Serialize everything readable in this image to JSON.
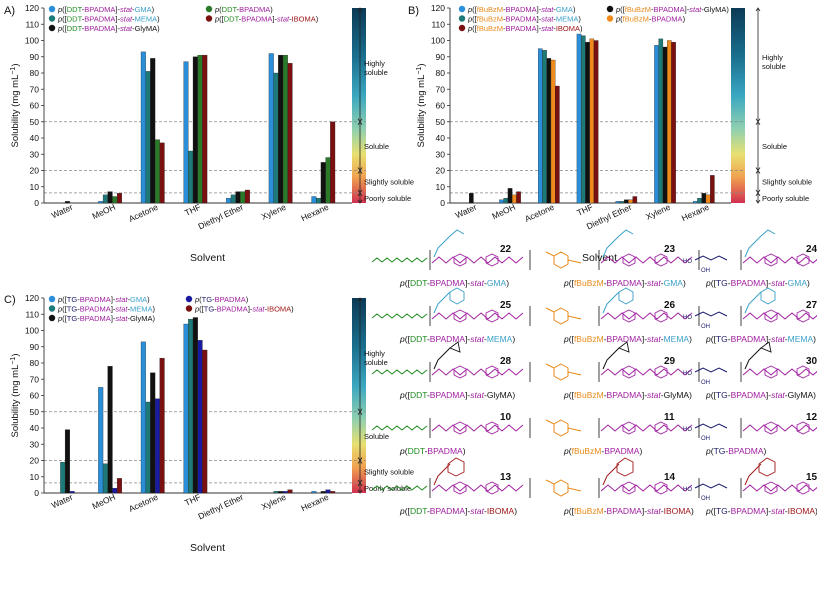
{
  "solvents": [
    "Water",
    "MeOH",
    "Acetone",
    "THF",
    "Diethyl Ether",
    "Xylene",
    "Hexane"
  ],
  "xlabel": "Solvent",
  "ylabel": "Solubility (mg mL",
  "ylabel_sup": "−1",
  "ylabel_close": ")",
  "zones": [
    {
      "label": "Highly soluble",
      "min": 50,
      "max": 120
    },
    {
      "label": "Soluble",
      "min": 20,
      "max": 50
    },
    {
      "label": "Slightly soluble",
      "min": 6.25,
      "max": 20
    },
    {
      "label": "Poorly soluble",
      "min": 0,
      "max": 6.25
    }
  ],
  "thresholds": [
    50,
    20,
    6.25
  ],
  "colors": {
    "blue": "#2a8ed8",
    "teal": "#1e7a78",
    "black": "#111111",
    "green": "#2a7a2a",
    "red": "#7a1010",
    "orange": "#f08a1a",
    "navy": "#1a1aa0"
  },
  "chart_data": [
    {
      "panel": "A)",
      "type": "bar",
      "ylim": [
        0,
        120
      ],
      "yticks": [
        0,
        10,
        20,
        30,
        40,
        50,
        60,
        70,
        80,
        90,
        100,
        110,
        120
      ],
      "series": [
        {
          "name": "p([DDT-BPADMA]-stat-GMA)",
          "color": "#2a8ed8",
          "values": [
            0,
            1,
            93,
            87,
            3,
            92,
            4
          ]
        },
        {
          "name": "p([DDT-BPADMA]-stat-MEMA)",
          "color": "#1e7a78",
          "values": [
            0,
            5,
            81,
            32,
            5,
            80,
            3
          ]
        },
        {
          "name": "p([DDT-BPADMA]-stat-GlyMA)",
          "color": "#111111",
          "values": [
            1,
            7,
            89,
            90,
            7,
            91,
            25
          ]
        },
        {
          "name": "p(DDT-BPADMA)",
          "color": "#2a7a2a",
          "values": [
            0,
            4,
            39,
            91,
            7,
            91,
            28
          ]
        },
        {
          "name": "p([DDT-BPADMA]-stat-IBOMA)",
          "color": "#7a1010",
          "values": [
            0,
            6,
            37,
            91,
            8,
            86,
            50
          ]
        }
      ]
    },
    {
      "panel": "B)",
      "type": "bar",
      "ylim": [
        0,
        120
      ],
      "yticks": [
        0,
        10,
        20,
        30,
        40,
        50,
        60,
        70,
        80,
        90,
        100,
        110,
        120
      ],
      "series": [
        {
          "name": "p([fBuBzM-BPADMA]-stat-GMA)",
          "color": "#2a8ed8",
          "values": [
            0,
            2,
            95,
            104,
            1,
            97,
            1
          ]
        },
        {
          "name": "p([fBuBzM-BPADMA]-stat-MEMA)",
          "color": "#1e7a78",
          "values": [
            0,
            3,
            94,
            103,
            1,
            101,
            3
          ]
        },
        {
          "name": "p([fBuBzM-BPADMA]-stat-GlyMA)",
          "color": "#111111",
          "values": [
            6,
            9,
            89,
            99,
            2,
            96,
            6
          ]
        },
        {
          "name": "p(fBuBzM-BPADMA)",
          "color": "#f08a1a",
          "values": [
            0,
            5,
            88,
            101,
            2,
            100,
            5
          ]
        },
        {
          "name": "p([fBuBzM-BPADMA]-stat-IBOMA)",
          "color": "#7a1010",
          "values": [
            0,
            7,
            72,
            100,
            4,
            99,
            17
          ]
        }
      ]
    },
    {
      "panel": "C)",
      "type": "bar",
      "ylim": [
        0,
        120
      ],
      "yticks": [
        0,
        10,
        20,
        30,
        40,
        50,
        60,
        70,
        80,
        90,
        100,
        110,
        120
      ],
      "series": [
        {
          "name": "p([TG-BPADMA]-stat-GMA)",
          "color": "#2a8ed8",
          "values": [
            0,
            65,
            93,
            104,
            0,
            0,
            1
          ]
        },
        {
          "name": "p([TG-BPADMA]-stat-MEMA)",
          "color": "#1e7a78",
          "values": [
            19,
            18,
            56,
            107,
            0,
            1,
            0
          ]
        },
        {
          "name": "p([TG-BPADMA]-stat-GlyMA)",
          "color": "#111111",
          "values": [
            39,
            78,
            74,
            108,
            0,
            1,
            1
          ]
        },
        {
          "name": "p(TG-BPADMA)",
          "color": "#1a1aa0",
          "values": [
            1,
            3,
            58,
            94,
            0,
            1,
            2
          ]
        },
        {
          "name": "p([TG-BPADMA]-stat-IBOMA)",
          "color": "#7a1010",
          "values": [
            0,
            9,
            83,
            88,
            0,
            2,
            1
          ]
        }
      ]
    }
  ],
  "structures": [
    {
      "num": "22",
      "parts": [
        [
          "p([",
          "k"
        ],
        [
          "DDT",
          "g"
        ],
        [
          "-",
          "k"
        ],
        [
          "BPADMA",
          "m"
        ],
        [
          "]-",
          "k"
        ],
        [
          "stat",
          "mi"
        ],
        [
          "-",
          "k"
        ],
        [
          "GMA",
          "c"
        ],
        [
          ")",
          "k"
        ]
      ]
    },
    {
      "num": "23",
      "parts": [
        [
          "p([",
          "k"
        ],
        [
          "fBuBzM",
          "o"
        ],
        [
          "-",
          "k"
        ],
        [
          "BPADMA",
          "m"
        ],
        [
          "]-",
          "k"
        ],
        [
          "stat",
          "mi"
        ],
        [
          "-",
          "k"
        ],
        [
          "GMA",
          "c"
        ],
        [
          ")",
          "k"
        ]
      ]
    },
    {
      "num": "24",
      "parts": [
        [
          "p([",
          "k"
        ],
        [
          "TG",
          "n"
        ],
        [
          "-",
          "k"
        ],
        [
          "BPADMA",
          "m"
        ],
        [
          "]-",
          "k"
        ],
        [
          "stat",
          "mi"
        ],
        [
          "-",
          "k"
        ],
        [
          "GMA",
          "c"
        ],
        [
          ")",
          "k"
        ]
      ]
    },
    {
      "num": "25",
      "parts": [
        [
          "p([",
          "k"
        ],
        [
          "DDT",
          "g"
        ],
        [
          "-",
          "k"
        ],
        [
          "BPADMA",
          "m"
        ],
        [
          "]-",
          "k"
        ],
        [
          "stat",
          "mi"
        ],
        [
          "-",
          "k"
        ],
        [
          "MEMA",
          "c"
        ],
        [
          ")",
          "k"
        ]
      ]
    },
    {
      "num": "26",
      "parts": [
        [
          "p([",
          "k"
        ],
        [
          "fBuBzM",
          "o"
        ],
        [
          "-",
          "k"
        ],
        [
          "BPADMA",
          "m"
        ],
        [
          "]-",
          "k"
        ],
        [
          "stat",
          "mi"
        ],
        [
          "-",
          "k"
        ],
        [
          "MEMA",
          "c"
        ],
        [
          ")",
          "k"
        ]
      ]
    },
    {
      "num": "27",
      "parts": [
        [
          "p([",
          "k"
        ],
        [
          "TG",
          "n"
        ],
        [
          "-",
          "k"
        ],
        [
          "BPADMA",
          "m"
        ],
        [
          "]-",
          "k"
        ],
        [
          "stat",
          "mi"
        ],
        [
          "-",
          "k"
        ],
        [
          "MEMA",
          "c"
        ],
        [
          ")",
          "k"
        ]
      ]
    },
    {
      "num": "28",
      "parts": [
        [
          "p([",
          "k"
        ],
        [
          "DDT",
          "g"
        ],
        [
          "-",
          "k"
        ],
        [
          "BPADMA",
          "m"
        ],
        [
          "]-",
          "k"
        ],
        [
          "stat",
          "mi"
        ],
        [
          "-",
          "k"
        ],
        [
          "GlyMA",
          "k"
        ],
        [
          ")",
          "k"
        ]
      ]
    },
    {
      "num": "29",
      "parts": [
        [
          "p([",
          "k"
        ],
        [
          "fBuBzM",
          "o"
        ],
        [
          "-",
          "k"
        ],
        [
          "BPADMA",
          "m"
        ],
        [
          "]-",
          "k"
        ],
        [
          "stat",
          "mi"
        ],
        [
          "-",
          "k"
        ],
        [
          "GlyMA",
          "k"
        ],
        [
          ")",
          "k"
        ]
      ]
    },
    {
      "num": "30",
      "parts": [
        [
          "p([",
          "k"
        ],
        [
          "TG",
          "n"
        ],
        [
          "-",
          "k"
        ],
        [
          "BPADMA",
          "m"
        ],
        [
          "]-",
          "k"
        ],
        [
          "stat",
          "mi"
        ],
        [
          "-",
          "k"
        ],
        [
          "GlyMA",
          "k"
        ],
        [
          ")",
          "k"
        ]
      ]
    },
    {
      "num": "10",
      "parts": [
        [
          "p(",
          "k"
        ],
        [
          "DDT",
          "g"
        ],
        [
          "-",
          "k"
        ],
        [
          "BPADMA",
          "m"
        ],
        [
          ")",
          "k"
        ]
      ]
    },
    {
      "num": "11",
      "parts": [
        [
          "p(",
          "k"
        ],
        [
          "fBuBzM",
          "o"
        ],
        [
          "-",
          "k"
        ],
        [
          "BPADMA",
          "m"
        ],
        [
          ")",
          "k"
        ]
      ]
    },
    {
      "num": "12",
      "parts": [
        [
          "p(",
          "k"
        ],
        [
          "TG",
          "n"
        ],
        [
          "-",
          "k"
        ],
        [
          "BPADMA",
          "m"
        ],
        [
          ")",
          "k"
        ]
      ]
    },
    {
      "num": "13",
      "parts": [
        [
          "p([",
          "k"
        ],
        [
          "DDT",
          "g"
        ],
        [
          "-",
          "k"
        ],
        [
          "BPADMA",
          "m"
        ],
        [
          "]-",
          "k"
        ],
        [
          "stat",
          "mi"
        ],
        [
          "-",
          "k"
        ],
        [
          "IBOMA",
          "r"
        ],
        [
          ")",
          "k"
        ]
      ]
    },
    {
      "num": "14",
      "parts": [
        [
          "p([",
          "k"
        ],
        [
          "fBuBzM",
          "o"
        ],
        [
          "-",
          "k"
        ],
        [
          "BPADMA",
          "m"
        ],
        [
          "]-",
          "k"
        ],
        [
          "stat",
          "mi"
        ],
        [
          "-",
          "k"
        ],
        [
          "IBOMA",
          "r"
        ],
        [
          ")",
          "k"
        ]
      ]
    },
    {
      "num": "15",
      "parts": [
        [
          "p([",
          "k"
        ],
        [
          "TG",
          "n"
        ],
        [
          "-",
          "k"
        ],
        [
          "BPADMA",
          "m"
        ],
        [
          "]-",
          "k"
        ],
        [
          "stat",
          "mi"
        ],
        [
          "-",
          "k"
        ],
        [
          "IBOMA",
          "r"
        ],
        [
          ")",
          "k"
        ]
      ]
    }
  ]
}
